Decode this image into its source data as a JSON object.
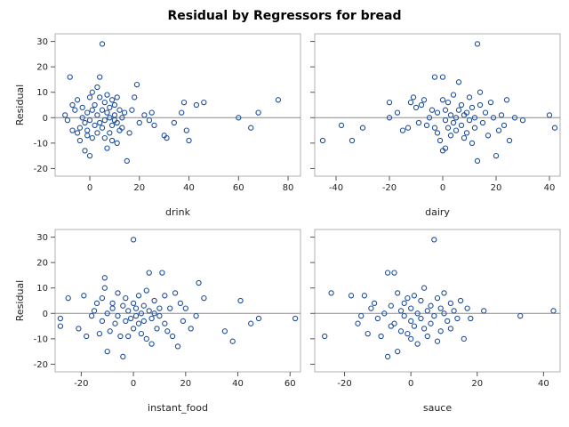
{
  "figure": {
    "title": "Residual by Regressors for bread"
  },
  "style": {
    "point_color": "#1F4E9A",
    "frame_color": "#B0B0B0",
    "ref_line_color": "#8A8A8A",
    "background": "#FFFFFF"
  },
  "chart_data": [
    {
      "type": "scatter",
      "xlabel": "drink",
      "ylabel": "Residual",
      "xlim": [
        -14,
        85
      ],
      "ylim": [
        -23,
        33
      ],
      "xticks": [
        0,
        20,
        40,
        60,
        80
      ],
      "yticks": [
        -20,
        -10,
        0,
        10,
        20,
        30
      ],
      "reference_line_y": 0,
      "points": [
        [
          -10,
          1
        ],
        [
          -9,
          -1
        ],
        [
          -8,
          16
        ],
        [
          -7,
          5
        ],
        [
          -7,
          -5
        ],
        [
          -6,
          3
        ],
        [
          -5,
          -6
        ],
        [
          -5,
          7
        ],
        [
          -4,
          -4
        ],
        [
          -4,
          -9
        ],
        [
          -3,
          0
        ],
        [
          -3,
          4
        ],
        [
          -2,
          -2
        ],
        [
          -2,
          -13
        ],
        [
          -1,
          -7
        ],
        [
          -1,
          2
        ],
        [
          -1,
          -5
        ],
        [
          0,
          -15
        ],
        [
          0,
          8
        ],
        [
          0,
          -1
        ],
        [
          1,
          3
        ],
        [
          1,
          -8
        ],
        [
          1,
          10
        ],
        [
          2,
          -3
        ],
        [
          2,
          5
        ],
        [
          3,
          12
        ],
        [
          3,
          -6
        ],
        [
          3,
          1
        ],
        [
          4,
          8
        ],
        [
          4,
          -2
        ],
        [
          4,
          16
        ],
        [
          5,
          29
        ],
        [
          5,
          -4
        ],
        [
          5,
          3
        ],
        [
          6,
          -8
        ],
        [
          6,
          6
        ],
        [
          6,
          -1
        ],
        [
          7,
          -12
        ],
        [
          7,
          2
        ],
        [
          7,
          9
        ],
        [
          8,
          -6
        ],
        [
          8,
          0
        ],
        [
          8,
          4
        ],
        [
          9,
          -3
        ],
        [
          9,
          7
        ],
        [
          9,
          -9
        ],
        [
          10,
          1
        ],
        [
          10,
          -1
        ],
        [
          10,
          5
        ],
        [
          11,
          -2
        ],
        [
          11,
          8
        ],
        [
          11,
          -10
        ],
        [
          12,
          3
        ],
        [
          12,
          -5
        ],
        [
          13,
          0
        ],
        [
          13,
          -4
        ],
        [
          14,
          2
        ],
        [
          15,
          -17
        ],
        [
          16,
          -6
        ],
        [
          17,
          3
        ],
        [
          18,
          8
        ],
        [
          19,
          13
        ],
        [
          20,
          -2
        ],
        [
          22,
          1
        ],
        [
          24,
          -1
        ],
        [
          25,
          2
        ],
        [
          26,
          -3
        ],
        [
          30,
          -7
        ],
        [
          31,
          -8
        ],
        [
          34,
          -2
        ],
        [
          37,
          2
        ],
        [
          38,
          6
        ],
        [
          39,
          -5
        ],
        [
          40,
          -9
        ],
        [
          43,
          5
        ],
        [
          46,
          6
        ],
        [
          60,
          0
        ],
        [
          65,
          -4
        ],
        [
          68,
          2
        ],
        [
          76,
          7
        ]
      ]
    },
    {
      "type": "scatter",
      "xlabel": "dairy",
      "ylabel": "",
      "xlim": [
        -48,
        44
      ],
      "ylim": [
        -23,
        33
      ],
      "xticks": [
        -40,
        -20,
        0,
        20,
        40
      ],
      "yticks": [
        -20,
        -10,
        0,
        10,
        20,
        30
      ],
      "reference_line_y": 0,
      "points": [
        [
          -45,
          -9
        ],
        [
          -38,
          -3
        ],
        [
          -34,
          -9
        ],
        [
          -30,
          -4
        ],
        [
          -20,
          6
        ],
        [
          -20,
          0
        ],
        [
          -17,
          2
        ],
        [
          -15,
          -5
        ],
        [
          -13,
          -4
        ],
        [
          -12,
          6
        ],
        [
          -11,
          8
        ],
        [
          -10,
          4
        ],
        [
          -9,
          -2
        ],
        [
          -8,
          5
        ],
        [
          -7,
          7
        ],
        [
          -6,
          -3
        ],
        [
          -5,
          0
        ],
        [
          -4,
          3
        ],
        [
          -3,
          16
        ],
        [
          -3,
          -4
        ],
        [
          -2,
          2
        ],
        [
          -2,
          -6
        ],
        [
          -1,
          -9
        ],
        [
          0,
          7
        ],
        [
          0,
          16
        ],
        [
          0,
          -13
        ],
        [
          1,
          -1
        ],
        [
          1,
          3
        ],
        [
          1,
          -12
        ],
        [
          2,
          6
        ],
        [
          2,
          -4
        ],
        [
          3,
          1
        ],
        [
          3,
          -7
        ],
        [
          4,
          -2
        ],
        [
          4,
          9
        ],
        [
          5,
          0
        ],
        [
          5,
          -5
        ],
        [
          6,
          3
        ],
        [
          6,
          14
        ],
        [
          7,
          -3
        ],
        [
          7,
          5
        ],
        [
          8,
          -8
        ],
        [
          8,
          1
        ],
        [
          9,
          2
        ],
        [
          9,
          -6
        ],
        [
          10,
          -1
        ],
        [
          10,
          8
        ],
        [
          11,
          -10
        ],
        [
          11,
          4
        ],
        [
          12,
          -4
        ],
        [
          12,
          0
        ],
        [
          13,
          29
        ],
        [
          13,
          -17
        ],
        [
          14,
          10
        ],
        [
          14,
          5
        ],
        [
          15,
          -2
        ],
        [
          16,
          2
        ],
        [
          17,
          -7
        ],
        [
          18,
          6
        ],
        [
          19,
          0
        ],
        [
          20,
          -15
        ],
        [
          21,
          -5
        ],
        [
          22,
          1
        ],
        [
          23,
          -3
        ],
        [
          24,
          7
        ],
        [
          25,
          -9
        ],
        [
          27,
          0
        ],
        [
          30,
          -1
        ],
        [
          40,
          1
        ],
        [
          42,
          -4
        ]
      ]
    },
    {
      "type": "scatter",
      "xlabel": "instant_food",
      "ylabel": "Residual",
      "xlim": [
        -30,
        64
      ],
      "ylim": [
        -23,
        33
      ],
      "xticks": [
        -20,
        0,
        20,
        40,
        60
      ],
      "yticks": [
        -20,
        -10,
        0,
        10,
        20,
        30
      ],
      "reference_line_y": 0,
      "points": [
        [
          -28,
          -5
        ],
        [
          -28,
          -2
        ],
        [
          -25,
          6
        ],
        [
          -21,
          -6
        ],
        [
          -19,
          7
        ],
        [
          -18,
          -9
        ],
        [
          -16,
          -1
        ],
        [
          -15,
          1
        ],
        [
          -14,
          4
        ],
        [
          -13,
          -8
        ],
        [
          -12,
          -3
        ],
        [
          -12,
          6
        ],
        [
          -11,
          10
        ],
        [
          -11,
          14
        ],
        [
          -10,
          -15
        ],
        [
          -10,
          0
        ],
        [
          -9,
          -7
        ],
        [
          -8,
          4
        ],
        [
          -8,
          2
        ],
        [
          -7,
          -4
        ],
        [
          -6,
          8
        ],
        [
          -6,
          -1
        ],
        [
          -5,
          -9
        ],
        [
          -4,
          3
        ],
        [
          -4,
          -17
        ],
        [
          -3,
          6
        ],
        [
          -3,
          -3
        ],
        [
          -2,
          1
        ],
        [
          -2,
          -9
        ],
        [
          -1,
          -2
        ],
        [
          0,
          29
        ],
        [
          0,
          4
        ],
        [
          0,
          -6
        ],
        [
          1,
          2
        ],
        [
          1,
          -1
        ],
        [
          2,
          7
        ],
        [
          2,
          -4
        ],
        [
          3,
          0
        ],
        [
          3,
          -8
        ],
        [
          4,
          3
        ],
        [
          4,
          -3
        ],
        [
          5,
          -10
        ],
        [
          5,
          9
        ],
        [
          6,
          1
        ],
        [
          6,
          16
        ],
        [
          7,
          -2
        ],
        [
          7,
          -12
        ],
        [
          8,
          5
        ],
        [
          8,
          0
        ],
        [
          9,
          -6
        ],
        [
          10,
          2
        ],
        [
          10,
          -1
        ],
        [
          11,
          16
        ],
        [
          12,
          -4
        ],
        [
          12,
          7
        ],
        [
          13,
          -7
        ],
        [
          14,
          2
        ],
        [
          15,
          -9
        ],
        [
          16,
          8
        ],
        [
          17,
          -13
        ],
        [
          18,
          4
        ],
        [
          19,
          -3
        ],
        [
          20,
          2
        ],
        [
          22,
          -6
        ],
        [
          24,
          -1
        ],
        [
          25,
          12
        ],
        [
          27,
          6
        ],
        [
          35,
          -7
        ],
        [
          38,
          -11
        ],
        [
          41,
          5
        ],
        [
          45,
          -4
        ],
        [
          48,
          -2
        ],
        [
          62,
          -2
        ]
      ]
    },
    {
      "type": "scatter",
      "xlabel": "sauce",
      "ylabel": "",
      "xlim": [
        -29,
        45
      ],
      "ylim": [
        -23,
        33
      ],
      "xticks": [
        -20,
        0,
        20,
        40
      ],
      "yticks": [
        -20,
        -10,
        0,
        10,
        20,
        30
      ],
      "reference_line_y": 0,
      "points": [
        [
          -26,
          -9
        ],
        [
          -24,
          8
        ],
        [
          -18,
          7
        ],
        [
          -16,
          -4
        ],
        [
          -15,
          -1
        ],
        [
          -14,
          7
        ],
        [
          -13,
          -8
        ],
        [
          -12,
          2
        ],
        [
          -11,
          4
        ],
        [
          -10,
          -2
        ],
        [
          -9,
          -9
        ],
        [
          -8,
          0
        ],
        [
          -7,
          -17
        ],
        [
          -7,
          16
        ],
        [
          -6,
          -5
        ],
        [
          -6,
          3
        ],
        [
          -5,
          -4
        ],
        [
          -5,
          16
        ],
        [
          -4,
          8
        ],
        [
          -4,
          -15
        ],
        [
          -3,
          1
        ],
        [
          -3,
          -7
        ],
        [
          -2,
          4
        ],
        [
          -2,
          -1
        ],
        [
          -1,
          -8
        ],
        [
          -1,
          6
        ],
        [
          0,
          2
        ],
        [
          0,
          -10
        ],
        [
          0,
          -3
        ],
        [
          1,
          7
        ],
        [
          1,
          -5
        ],
        [
          2,
          0
        ],
        [
          2,
          -12
        ],
        [
          3,
          5
        ],
        [
          3,
          -2
        ],
        [
          4,
          10
        ],
        [
          4,
          -6
        ],
        [
          5,
          1
        ],
        [
          5,
          -9
        ],
        [
          6,
          3
        ],
        [
          6,
          -4
        ],
        [
          7,
          29
        ],
        [
          7,
          -1
        ],
        [
          8,
          6
        ],
        [
          8,
          -11
        ],
        [
          9,
          2
        ],
        [
          9,
          -7
        ],
        [
          10,
          0
        ],
        [
          10,
          8
        ],
        [
          11,
          -3
        ],
        [
          12,
          4
        ],
        [
          12,
          -6
        ],
        [
          13,
          1
        ],
        [
          14,
          -2
        ],
        [
          15,
          5
        ],
        [
          16,
          -10
        ],
        [
          17,
          2
        ],
        [
          18,
          -2
        ],
        [
          22,
          1
        ],
        [
          33,
          -1
        ],
        [
          43,
          1
        ]
      ]
    }
  ]
}
